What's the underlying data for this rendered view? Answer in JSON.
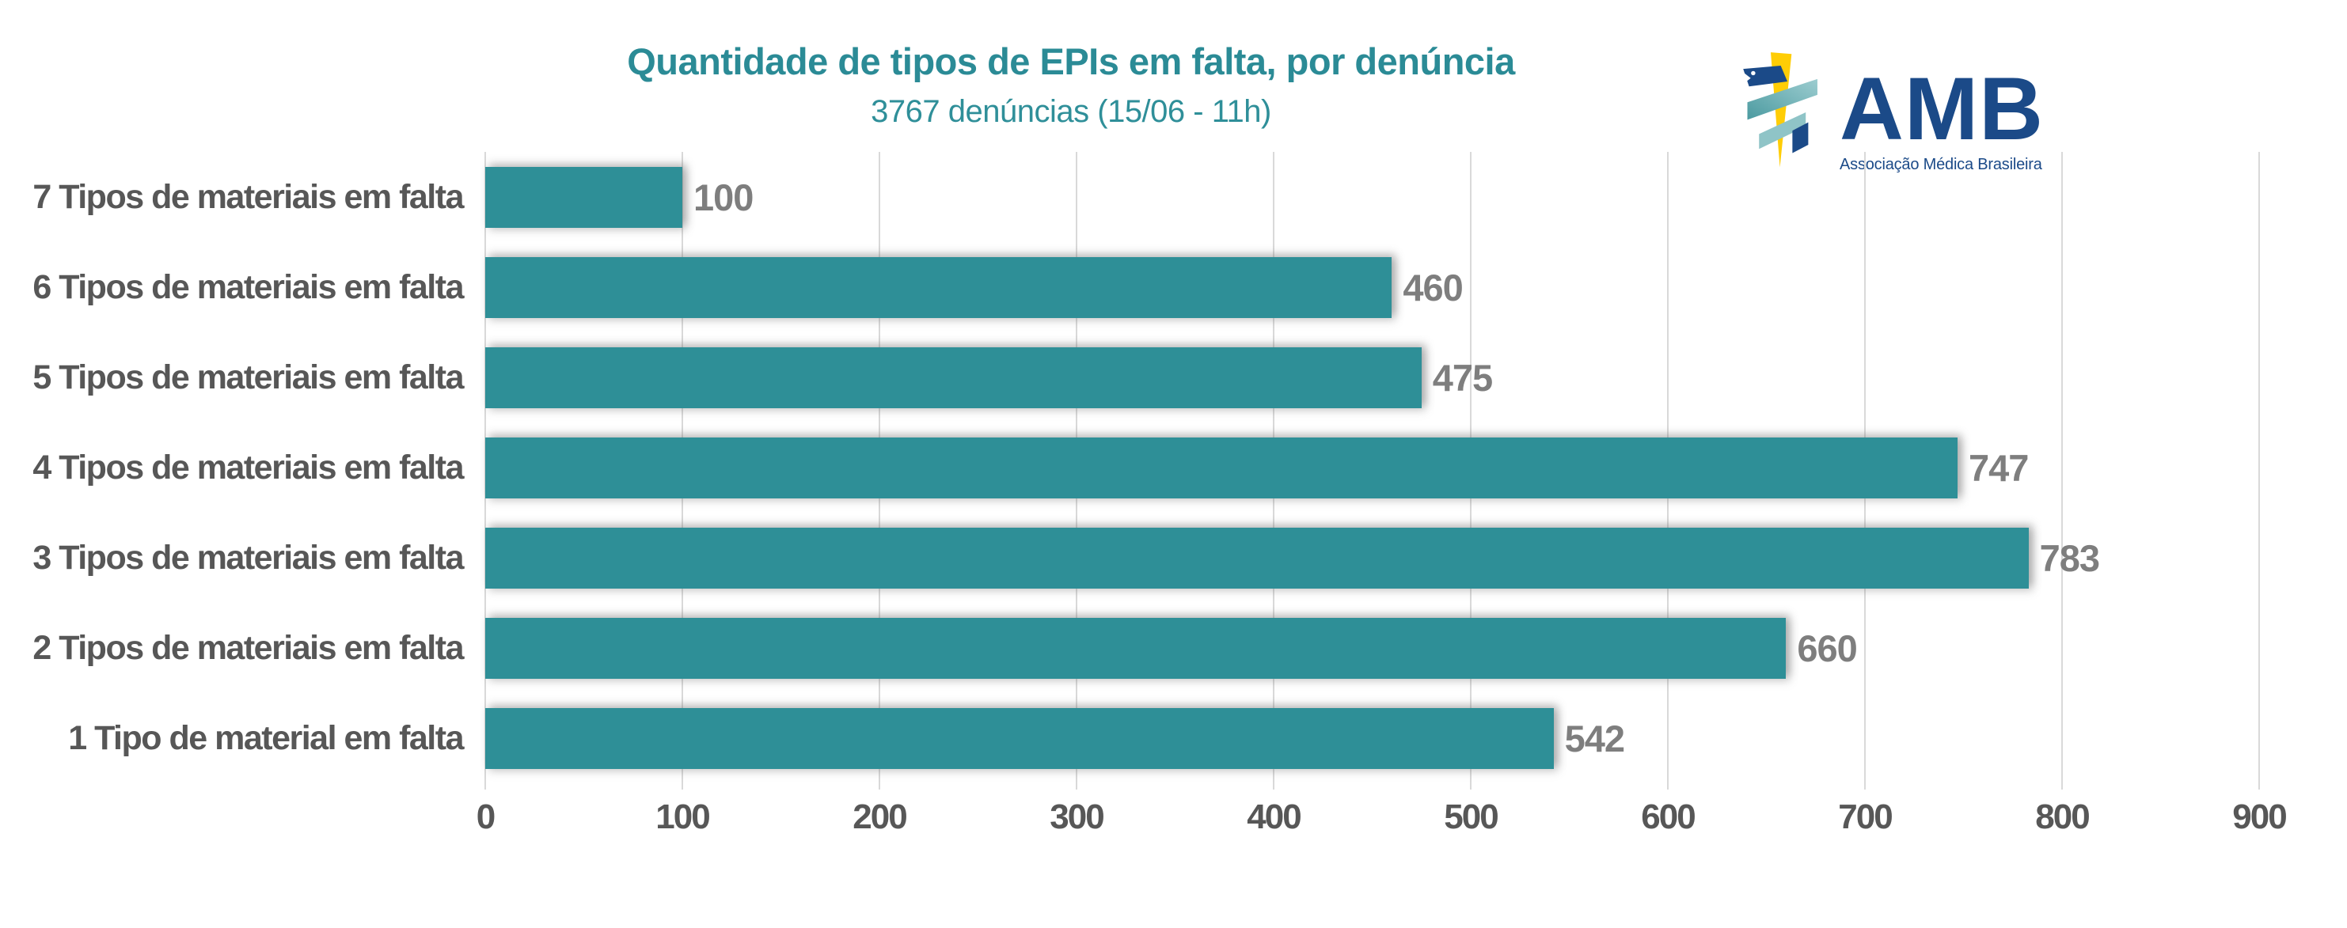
{
  "header": {
    "title": "Quantidade de tipos de EPIs em falta, por denúncia",
    "subtitle": "3767 denúncias (15/06 - 11h)"
  },
  "logo": {
    "acronym": "AMB",
    "tagline": "Associação Médica Brasileira",
    "navy": "#1b4a88",
    "teal": "#5fa8ac",
    "teal_light": "#9dcdd0",
    "yellow": "#ffcd05"
  },
  "chart_data": {
    "type": "bar",
    "orientation": "horizontal",
    "title": "Quantidade de tipos de EPIs em falta, por denúncia",
    "subtitle": "3767 denúncias (15/06 - 11h)",
    "categories": [
      "7 Tipos de materiais em falta",
      "6 Tipos de materiais em falta",
      "5 Tipos de materiais em falta",
      "4 Tipos de materiais em falta",
      "3 Tipos de materiais em falta",
      "2 Tipos de materiais em falta",
      "1 Tipo de material em falta"
    ],
    "values": [
      100,
      460,
      475,
      747,
      783,
      660,
      542
    ],
    "data_labels": [
      "100",
      "460",
      "475",
      "747",
      "783",
      "660",
      "542"
    ],
    "xlim": [
      0,
      900
    ],
    "xticks": [
      0,
      100,
      200,
      300,
      400,
      500,
      600,
      700,
      800,
      900
    ],
    "grid": true,
    "legend": false,
    "bar_color": "#2e8f97",
    "gridline_color": "#d9d9d9",
    "category_label_color": "#575757",
    "value_label_color": "#7e7e7e",
    "axis_label_color": "#575757",
    "title_color": "#2b8b96"
  }
}
